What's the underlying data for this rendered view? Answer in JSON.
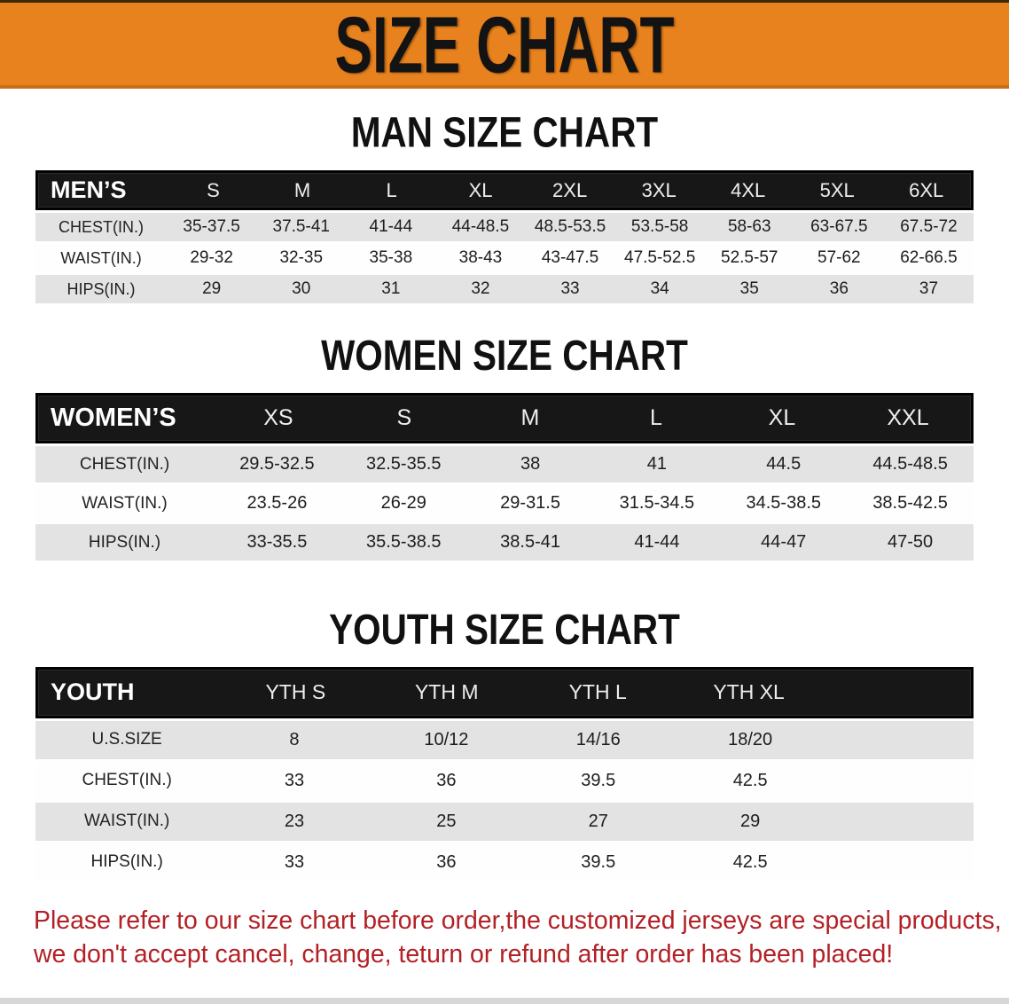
{
  "banner": {
    "title": "SIZE CHART",
    "bg_color": "#e8821e",
    "text_color": "#131313"
  },
  "men": {
    "heading": "MAN SIZE CHART",
    "label": "MEN’S",
    "columns": [
      "S",
      "M",
      "L",
      "XL",
      "2XL",
      "3XL",
      "4XL",
      "5XL",
      "6XL"
    ],
    "rows": [
      {
        "label": "CHEST(IN.)",
        "values": [
          "35-37.5",
          "37.5-41",
          "41-44",
          "44-48.5",
          "48.5-53.5",
          "53.5-58",
          "58-63",
          "63-67.5",
          "67.5-72"
        ]
      },
      {
        "label": "WAIST(IN.)",
        "values": [
          "29-32",
          "32-35",
          "35-38",
          "38-43",
          "43-47.5",
          "47.5-52.5",
          "52.5-57",
          "57-62",
          "62-66.5"
        ]
      },
      {
        "label": "HIPS(IN.)",
        "values": [
          "29",
          "30",
          "31",
          "32",
          "33",
          "34",
          "35",
          "36",
          "37"
        ]
      }
    ]
  },
  "women": {
    "heading": "WOMEN SIZE CHART",
    "label": "WOMEN’S",
    "columns": [
      "XS",
      "S",
      "M",
      "L",
      "XL",
      "XXL"
    ],
    "rows": [
      {
        "label": "CHEST(IN.)",
        "values": [
          "29.5-32.5",
          "32.5-35.5",
          "38",
          "41",
          "44.5",
          "44.5-48.5"
        ]
      },
      {
        "label": "WAIST(IN.)",
        "values": [
          "23.5-26",
          "26-29",
          "29-31.5",
          "31.5-34.5",
          "34.5-38.5",
          "38.5-42.5"
        ]
      },
      {
        "label": "HIPS(IN.)",
        "values": [
          "33-35.5",
          "35.5-38.5",
          "38.5-41",
          "41-44",
          "44-47",
          "47-50"
        ]
      }
    ]
  },
  "youth": {
    "heading": "YOUTH SIZE CHART",
    "label": "YOUTH",
    "columns": [
      "YTH S",
      "YTH M",
      "YTH L",
      "YTH XL"
    ],
    "rows": [
      {
        "label": "U.S.SIZE",
        "values": [
          "8",
          "10/12",
          "14/16",
          "18/20"
        ]
      },
      {
        "label": "CHEST(IN.)",
        "values": [
          "33",
          "36",
          "39.5",
          "42.5"
        ]
      },
      {
        "label": "WAIST(IN.)",
        "values": [
          "23",
          "25",
          "27",
          "29"
        ]
      },
      {
        "label": "HIPS(IN.)",
        "values": [
          "33",
          "36",
          "39.5",
          "42.5"
        ]
      }
    ]
  },
  "disclaimer": {
    "line1": "Please refer to our size chart before order,the customized jerseys are special products,",
    "line2": "we don't accept cancel, change, teturn or refund after order has been placed!",
    "color": "#b32025"
  },
  "table_colors": {
    "header_bg": "#171717",
    "header_text": "#f2f2f2",
    "row_gray": "#e3e3e3",
    "row_white": "#fefefe"
  }
}
